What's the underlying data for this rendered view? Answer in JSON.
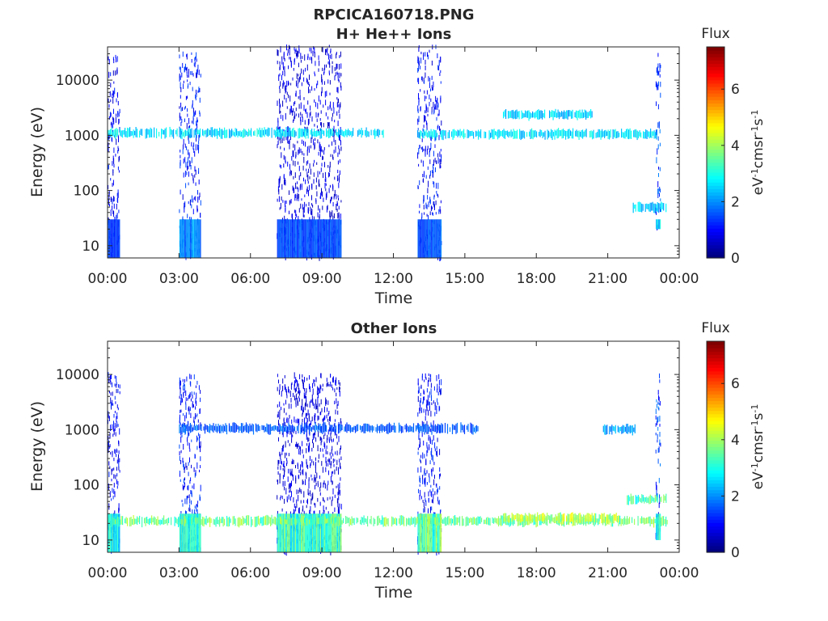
{
  "figure": {
    "title_line1": "RPCICA160718.PNG",
    "title_line2": "H+ He++ Ions",
    "title_panel2": "Other Ions"
  },
  "colormap": "jet",
  "chart_data": [
    {
      "type": "heatmap",
      "title": "H+ He++ Ions",
      "xlabel": "Time",
      "ylabel": "Energy (eV)",
      "x_ticks": [
        "00:00",
        "03:00",
        "06:00",
        "09:00",
        "12:00",
        "15:00",
        "18:00",
        "21:00",
        "00:00"
      ],
      "xlim_hours": [
        0,
        24
      ],
      "y_scale": "log",
      "ylim": [
        6,
        40000
      ],
      "y_ticks": [
        10,
        100,
        1000,
        10000
      ],
      "y_tick_labels": [
        "10",
        "100",
        "1000",
        "10000"
      ],
      "colorbar": {
        "title": "Flux",
        "label": "eV-1cm-2sr-1s-1",
        "range": [
          0,
          7.5
        ],
        "ticks": [
          0,
          2,
          4,
          6
        ],
        "tick_labels": [
          "0",
          "2",
          "4",
          "6"
        ]
      },
      "bursts": [
        {
          "start_hours": 0.0,
          "end_hours": 0.5,
          "emin": 6,
          "emax": 30000,
          "flux": 1.0,
          "low_band_flux": 1.3
        },
        {
          "start_hours": 3.0,
          "end_hours": 3.9,
          "emin": 6,
          "emax": 30000,
          "flux": 1.2,
          "low_band_flux": 2.0
        },
        {
          "start_hours": 7.1,
          "end_hours": 9.8,
          "emin": 6,
          "emax": 40000,
          "flux": 0.8,
          "low_band_flux": 1.5
        },
        {
          "start_hours": 13.0,
          "end_hours": 14.0,
          "emin": 6,
          "emax": 40000,
          "flux": 1.1,
          "low_band_flux": 1.6
        },
        {
          "start_hours": 23.0,
          "end_hours": 23.2,
          "emin": 20,
          "emax": 30000,
          "flux": 1.5,
          "low_band_flux": 2.5
        }
      ],
      "bands": [
        {
          "start_hours": 0.0,
          "end_hours": 11.6,
          "energy": 1100,
          "flux": 2.6
        },
        {
          "start_hours": 13.0,
          "end_hours": 23.1,
          "energy": 1050,
          "flux": 2.6
        },
        {
          "start_hours": 16.6,
          "end_hours": 20.4,
          "energy": 2400,
          "flux": 2.5
        },
        {
          "start_hours": 22.0,
          "end_hours": 23.5,
          "energy": 50,
          "flux": 2.4
        }
      ]
    },
    {
      "type": "heatmap",
      "title": "Other Ions",
      "xlabel": "Time",
      "ylabel": "Energy (eV)",
      "x_ticks": [
        "00:00",
        "03:00",
        "06:00",
        "09:00",
        "12:00",
        "15:00",
        "18:00",
        "21:00",
        "00:00"
      ],
      "xlim_hours": [
        0,
        24
      ],
      "y_scale": "log",
      "ylim": [
        6,
        40000
      ],
      "y_ticks": [
        10,
        100,
        1000,
        10000
      ],
      "y_tick_labels": [
        "10",
        "100",
        "1000",
        "10000"
      ],
      "colorbar": {
        "title": "Flux",
        "label": "eV-1cm-2sr-1s-1",
        "range": [
          0,
          7.5
        ],
        "ticks": [
          0,
          2,
          4,
          6
        ],
        "tick_labels": [
          "0",
          "2",
          "4",
          "6"
        ]
      },
      "bursts": [
        {
          "start_hours": 0.0,
          "end_hours": 0.5,
          "emin": 6,
          "emax": 10000,
          "flux": 1.0,
          "low_band_flux": 2.8
        },
        {
          "start_hours": 3.0,
          "end_hours": 3.9,
          "emin": 6,
          "emax": 10000,
          "flux": 1.2,
          "low_band_flux": 3.0
        },
        {
          "start_hours": 7.1,
          "end_hours": 9.8,
          "emin": 6,
          "emax": 10000,
          "flux": 0.8,
          "low_band_flux": 3.2
        },
        {
          "start_hours": 13.0,
          "end_hours": 14.0,
          "emin": 6,
          "emax": 10000,
          "flux": 1.1,
          "low_band_flux": 3.5
        },
        {
          "start_hours": 23.0,
          "end_hours": 23.2,
          "emin": 10,
          "emax": 10000,
          "flux": 1.5,
          "low_band_flux": 2.8
        }
      ],
      "bands": [
        {
          "start_hours": 0.0,
          "end_hours": 23.5,
          "energy": 22,
          "flux": 3.6
        },
        {
          "start_hours": 16.5,
          "end_hours": 21.5,
          "energy": 25,
          "flux": 4.0
        },
        {
          "start_hours": 3.0,
          "end_hours": 15.6,
          "energy": 1050,
          "flux": 1.6
        },
        {
          "start_hours": 20.8,
          "end_hours": 22.2,
          "energy": 1000,
          "flux": 2.2
        },
        {
          "start_hours": 21.8,
          "end_hours": 23.5,
          "energy": 55,
          "flux": 3.3
        }
      ]
    }
  ]
}
